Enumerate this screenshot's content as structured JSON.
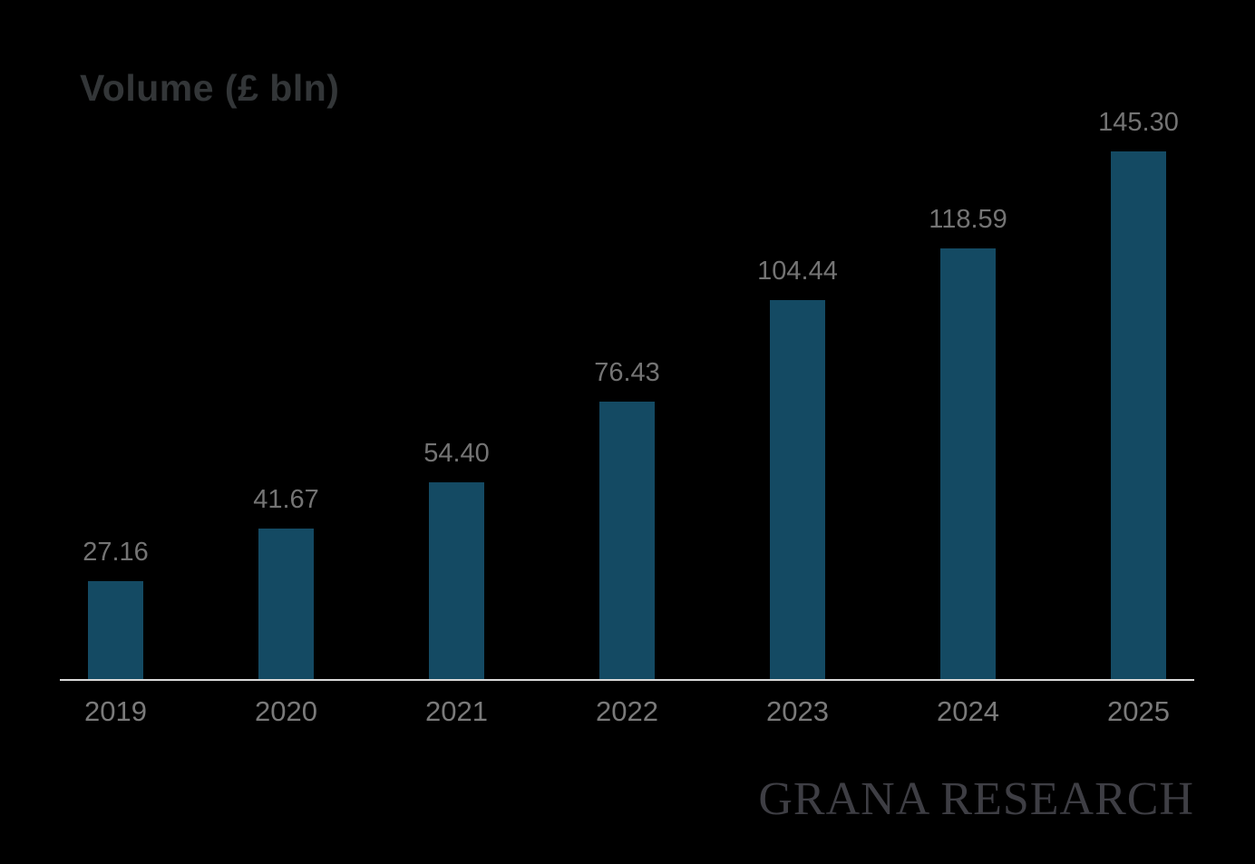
{
  "title": "Volume (£ bln)",
  "watermark": "GRANA RESEARCH",
  "chart_data": {
    "type": "bar",
    "title": "Volume (£ bln)",
    "categories": [
      "2019",
      "2020",
      "2021",
      "2022",
      "2023",
      "2024",
      "2025"
    ],
    "values": [
      27.16,
      41.67,
      54.4,
      76.43,
      104.44,
      118.59,
      145.3
    ],
    "value_labels": [
      "27.16",
      "41.67",
      "54.40",
      "76.43",
      "104.44",
      "118.59",
      "145.30"
    ],
    "xlabel": "",
    "ylabel": "Volume (£ bln)",
    "ylim": [
      0,
      150
    ],
    "grid": false,
    "legend": "none",
    "bar_color": "#144a63",
    "background_color": "#000000",
    "value_label_color": "#747474",
    "tick_label_color": "#7a7a7a",
    "axis_line_color": "#d9d9d9"
  }
}
